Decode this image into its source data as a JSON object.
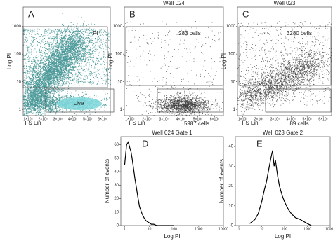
{
  "chart_data": [
    {
      "type": "scatter",
      "panel": "A",
      "xlabel": "FS Lin",
      "ylabel": "Log PI",
      "ylog": true,
      "xlim": [
        67000,
        652000
      ],
      "ylim": [
        0.6,
        5000
      ],
      "yticks": [
        1,
        10,
        100,
        1000
      ],
      "xticks": [
        {
          "value": 100000,
          "label": "1×10⁵"
        },
        {
          "value": 200000,
          "label": "2×10⁵"
        },
        {
          "value": 300000,
          "label": "3×10⁵"
        },
        {
          "value": 400000,
          "label": "4×10⁵"
        },
        {
          "value": 500000,
          "label": "5×10⁵"
        },
        {
          "value": 600000,
          "label": "6×10⁵"
        }
      ],
      "annotations": [
        "PI⁺",
        "Live"
      ],
      "color": "#1f7f80"
    },
    {
      "type": "scatter",
      "panel": "B",
      "title": "Well 024",
      "xlabel": "FS Lin",
      "ylabel": "Log PI",
      "ylog": true,
      "xlim": [
        67000,
        652000
      ],
      "ylim": [
        0.6,
        5000
      ],
      "yticks": [
        1,
        10,
        100,
        1000
      ],
      "xticks": [
        {
          "value": 100000,
          "label": "1×10⁵"
        },
        {
          "value": 200000,
          "label": "2×10⁵"
        },
        {
          "value": 300000,
          "label": "3×10⁵"
        },
        {
          "value": 400000,
          "label": "4×10⁵"
        },
        {
          "value": 500000,
          "label": "5×10⁵"
        },
        {
          "value": 600000,
          "label": "6×10⁵"
        }
      ],
      "annotations": [
        "283 cells",
        "5987 cells"
      ],
      "color": "#111111"
    },
    {
      "type": "scatter",
      "panel": "C",
      "title": "Well 023",
      "xlabel": "FS Lin",
      "ylabel": "Log PI",
      "ylog": true,
      "xlim": [
        67000,
        652000
      ],
      "ylim": [
        0.6,
        5000
      ],
      "yticks": [
        1,
        10,
        100,
        1000
      ],
      "xticks": [
        {
          "value": 100000,
          "label": "1×10⁵"
        },
        {
          "value": 200000,
          "label": "2×10⁵"
        },
        {
          "value": 300000,
          "label": "3×10⁵"
        },
        {
          "value": 400000,
          "label": "4×10⁵"
        },
        {
          "value": 500000,
          "label": "5×10⁵"
        },
        {
          "value": 600000,
          "label": "6×10⁵"
        }
      ],
      "annotations": [
        "3280 cells",
        "89 cells"
      ],
      "color": "#111111"
    },
    {
      "type": "line",
      "panel": "D",
      "title": "Well 024 Gate 1",
      "xlabel": "Log PI",
      "ylabel": "Number of events",
      "xlog": true,
      "xlim": [
        0.7,
        10000
      ],
      "ylim": [
        0,
        66
      ],
      "xticks": [
        1,
        10,
        100,
        1000,
        10000
      ],
      "yticks": [
        0,
        10,
        20,
        30,
        40,
        50,
        60
      ],
      "x": [
        1,
        1.2,
        1.4,
        1.6,
        1.8,
        2,
        2.3,
        2.6,
        3,
        3.5,
        4,
        5,
        6,
        7,
        8,
        10,
        12,
        15,
        20,
        30,
        50,
        100
      ],
      "values": [
        45,
        60,
        62,
        58,
        55,
        50,
        42,
        35,
        28,
        20,
        14,
        9,
        6,
        4,
        3,
        2,
        1,
        1,
        0,
        0,
        0,
        0
      ],
      "color": "#000000"
    },
    {
      "type": "line",
      "panel": "E",
      "title": "Well 023 Gate 2",
      "xlabel": "Log PI",
      "ylabel": "Number of events",
      "xlog": true,
      "xlim": [
        0.7,
        10000
      ],
      "ylim": [
        0,
        45
      ],
      "xticks": [
        1,
        10,
        100,
        1000,
        10000
      ],
      "yticks": [
        0,
        10,
        20,
        30,
        40
      ],
      "x": [
        3,
        5,
        7,
        10,
        13,
        16,
        20,
        25,
        30,
        35,
        40,
        50,
        60,
        80,
        100,
        150,
        200,
        300,
        500,
        700,
        1000,
        1500
      ],
      "values": [
        1,
        3,
        6,
        12,
        18,
        22,
        28,
        34,
        38,
        30,
        33,
        25,
        20,
        15,
        12,
        8,
        6,
        4,
        3,
        2,
        1,
        0
      ],
      "color": "#000000"
    }
  ]
}
